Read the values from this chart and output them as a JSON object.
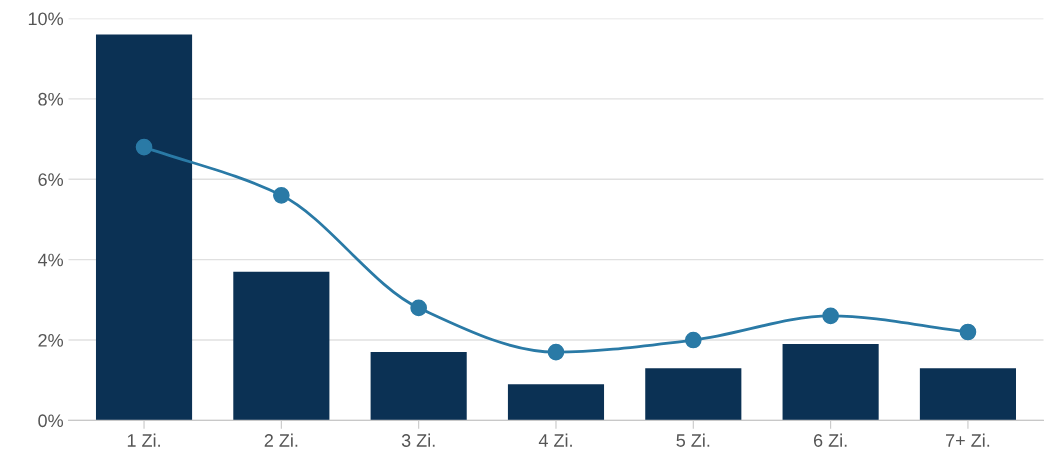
{
  "chart_data": {
    "type": "bar",
    "categories": [
      "1 Zi.",
      "2 Zi.",
      "3 Zi.",
      "4 Zi.",
      "5 Zi.",
      "6 Zi.",
      "7+ Zi."
    ],
    "series": [
      {
        "color": "#0b3154",
        "values": [
          9.6,
          3.7,
          1.7,
          0.9,
          1.3,
          1.9,
          1.3
        ]
      },
      {
        "type": "line",
        "color": "#2a7aa6",
        "values": [
          6.8,
          5.6,
          2.8,
          1.7,
          2.0,
          2.6,
          2.2
        ]
      }
    ],
    "ylim": [
      0,
      10
    ],
    "yticks": [
      {
        "value": 0,
        "label": "0%"
      },
      {
        "value": 2,
        "label": "2%"
      },
      {
        "value": 4,
        "label": "4%"
      },
      {
        "value": 6,
        "label": "6%"
      },
      {
        "value": 8,
        "label": "8%"
      },
      {
        "value": 10,
        "label": "10%"
      }
    ],
    "grid": "y",
    "marker": "circle",
    "line_style": "solid",
    "legend": false
  }
}
